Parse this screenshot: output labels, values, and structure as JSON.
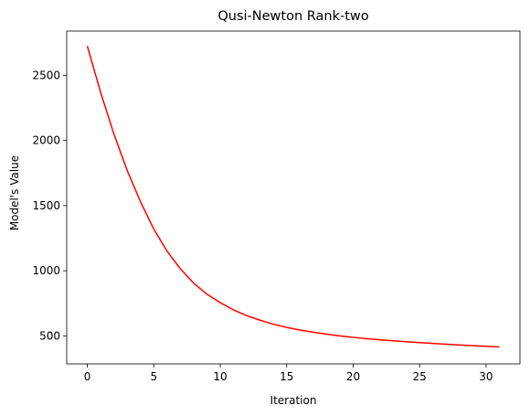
{
  "chart_data": {
    "type": "line",
    "title": "Qusi-Newton Rank-two",
    "xlabel": "Iteration",
    "ylabel": "Model's Value",
    "xlim": [
      -1.55,
      32.55
    ],
    "ylim": [
      285,
      2840
    ],
    "xticks": [
      0,
      5,
      10,
      15,
      20,
      25,
      30
    ],
    "yticks": [
      500,
      1000,
      1500,
      2000,
      2500
    ],
    "grid": false,
    "series": [
      {
        "color": "#ff0000",
        "x": [
          0,
          1,
          2,
          3,
          4,
          5,
          6,
          7,
          8,
          9,
          10,
          11,
          12,
          13,
          14,
          15,
          16,
          17,
          18,
          19,
          20,
          21,
          22,
          23,
          24,
          25,
          26,
          27,
          28,
          29,
          30,
          31
        ],
        "y": [
          2725,
          2370,
          2050,
          1770,
          1530,
          1320,
          1150,
          1015,
          905,
          820,
          755,
          700,
          655,
          620,
          590,
          565,
          545,
          528,
          513,
          500,
          489,
          479,
          470,
          462,
          455,
          448,
          442,
          436,
          430,
          425,
          420,
          415
        ]
      }
    ]
  }
}
